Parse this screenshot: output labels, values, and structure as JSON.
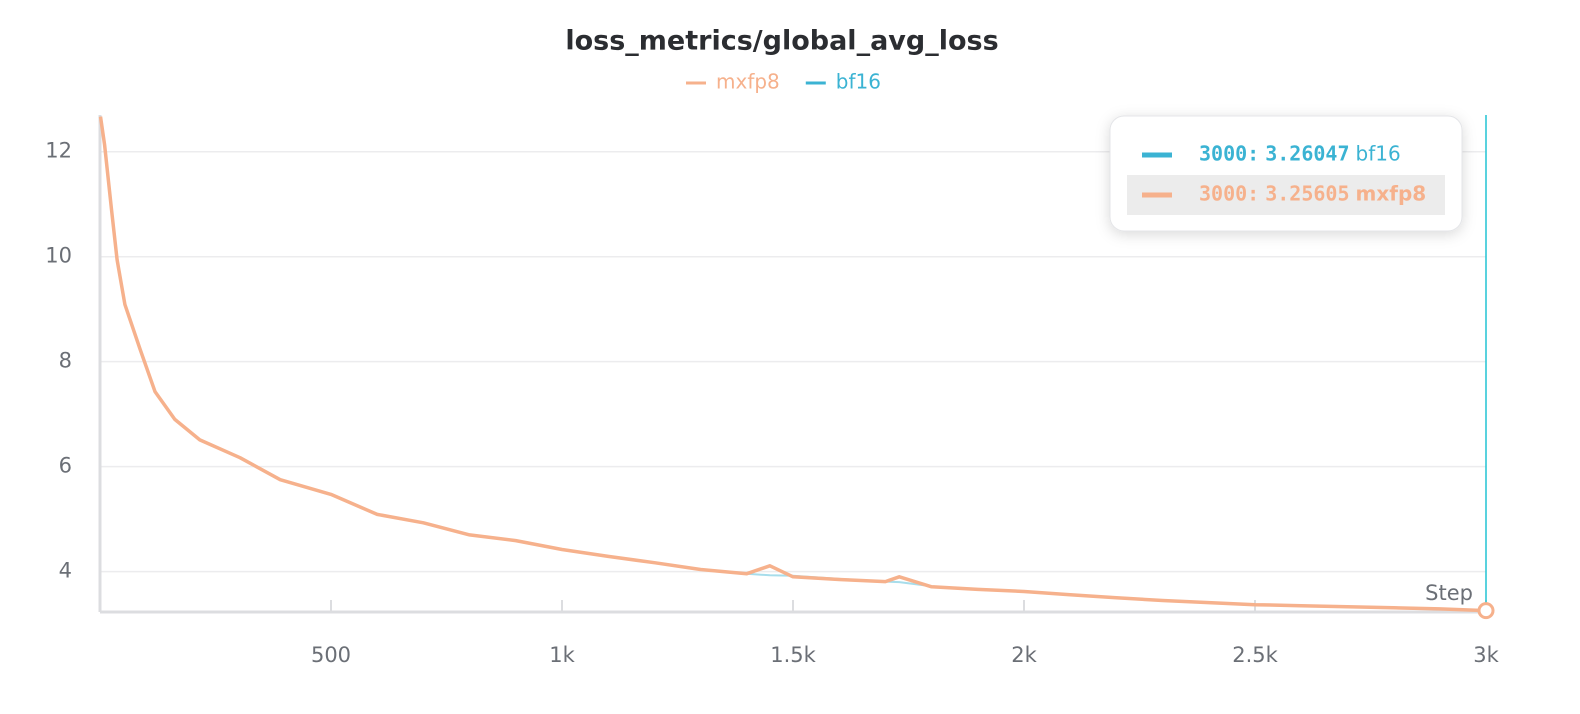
{
  "chart_data": {
    "type": "line",
    "title": "loss_metrics/global_avg_loss",
    "xlabel": "Step",
    "x": [
      1,
      10,
      25,
      37,
      54,
      87,
      119,
      162,
      216,
      303,
      390,
      500,
      600,
      700,
      800,
      900,
      1000,
      1100,
      1200,
      1300,
      1400,
      1450,
      1500,
      1600,
      1700,
      1730,
      1800,
      1900,
      2000,
      2100,
      2200,
      2300,
      2400,
      2500,
      2600,
      2700,
      2800,
      2900,
      3000
    ],
    "series": [
      {
        "name": "mxfp8",
        "color": "#f6b18c",
        "values": [
          12.67,
          12.13,
          10.9,
          9.94,
          9.09,
          8.23,
          7.43,
          6.9,
          6.51,
          6.17,
          5.75,
          5.47,
          5.09,
          4.93,
          4.7,
          4.59,
          4.42,
          4.29,
          4.17,
          4.04,
          3.96,
          4.11,
          3.9,
          3.85,
          3.81,
          3.9,
          3.71,
          3.66,
          3.62,
          3.56,
          3.5,
          3.45,
          3.41,
          3.37,
          3.35,
          3.33,
          3.31,
          3.29,
          3.25605
        ]
      },
      {
        "name": "bf16",
        "color": "#3bb3d3",
        "values": [
          12.67,
          12.13,
          10.9,
          9.94,
          9.09,
          8.23,
          7.43,
          6.9,
          6.51,
          6.17,
          5.75,
          5.47,
          5.09,
          4.93,
          4.7,
          4.59,
          4.42,
          4.29,
          4.17,
          4.04,
          3.96,
          3.93,
          3.92,
          3.86,
          3.81,
          3.8,
          3.72,
          3.66,
          3.62,
          3.56,
          3.5,
          3.45,
          3.41,
          3.37,
          3.35,
          3.33,
          3.31,
          3.29,
          3.26047
        ]
      }
    ],
    "xlim": [
      0,
      3000
    ],
    "xticks": [
      500,
      {
        "value": 1000,
        "label": "1k"
      },
      {
        "value": 1500,
        "label": "1.5k"
      },
      {
        "value": 2000,
        "label": "2k"
      },
      {
        "value": 2500,
        "label": "2.5k"
      },
      {
        "value": 3000,
        "label": "3k"
      }
    ],
    "ylim": [
      3.23,
      12.7
    ],
    "yticks": [
      4,
      6,
      8,
      10,
      12
    ],
    "grid": true,
    "tooltip": {
      "step": {
        "value": 3000,
        "label": "3000:"
      },
      "rows": [
        {
          "series": 1,
          "value": 3.26047
        },
        {
          "series": 0,
          "value": 3.25605
        }
      ]
    }
  }
}
